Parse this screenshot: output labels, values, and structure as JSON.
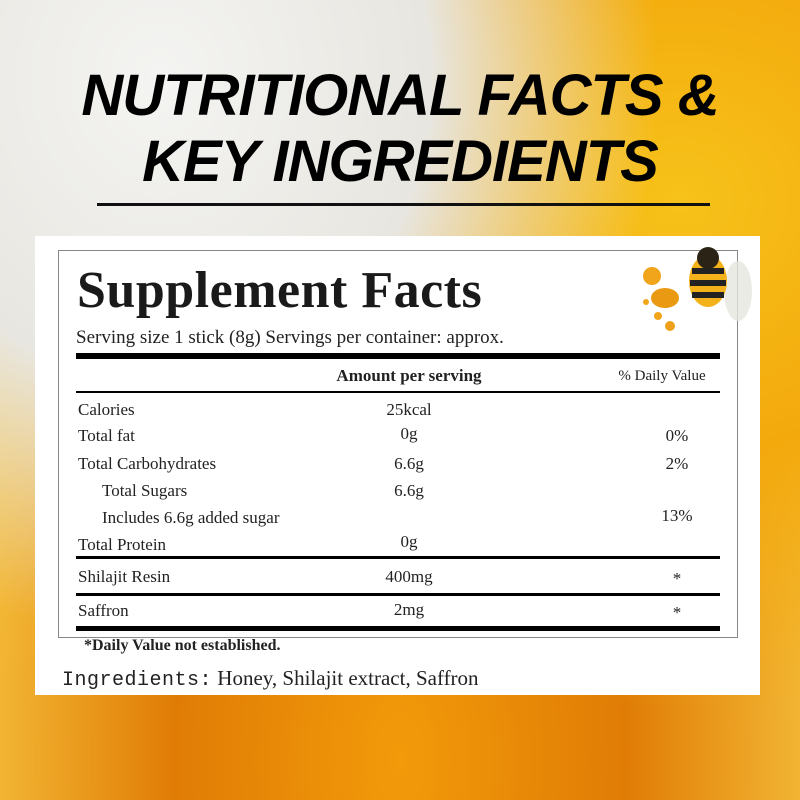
{
  "headline": {
    "line1": "NUTRITIONAL FACTS &",
    "line2": "KEY INGREDIENTS"
  },
  "facts": {
    "title": "Supplement Facts",
    "serving": "Serving size 1 stick (8g)  Servings per container: approx.",
    "col_amount": "Amount per serving",
    "col_dv": "% Daily Value",
    "rows": [
      {
        "label": "Calories",
        "amount": "25kcal",
        "dv": ""
      },
      {
        "label": "Total fat",
        "amount": "0g",
        "dv": "0%"
      },
      {
        "label": "Total Carbohydrates",
        "amount": "6.6g",
        "dv": "2%"
      },
      {
        "label": "Total Sugars",
        "amount": "6.6g",
        "dv": ""
      },
      {
        "label": "Includes 6.6g added sugar",
        "amount": "",
        "dv": "13%"
      },
      {
        "label": "Total Protein",
        "amount": "0g",
        "dv": ""
      },
      {
        "label": "Shilajit Resin",
        "amount": "400mg",
        "dv": "*"
      },
      {
        "label": "Saffron",
        "amount": "2mg",
        "dv": "*"
      }
    ],
    "footnote": "*Daily Value not established."
  },
  "ingredients": {
    "label": "Ingredients:",
    "value": " Honey, Shilajit extract, Saffron"
  },
  "colors": {
    "honey": "#f2a60c",
    "text": "#222222"
  }
}
